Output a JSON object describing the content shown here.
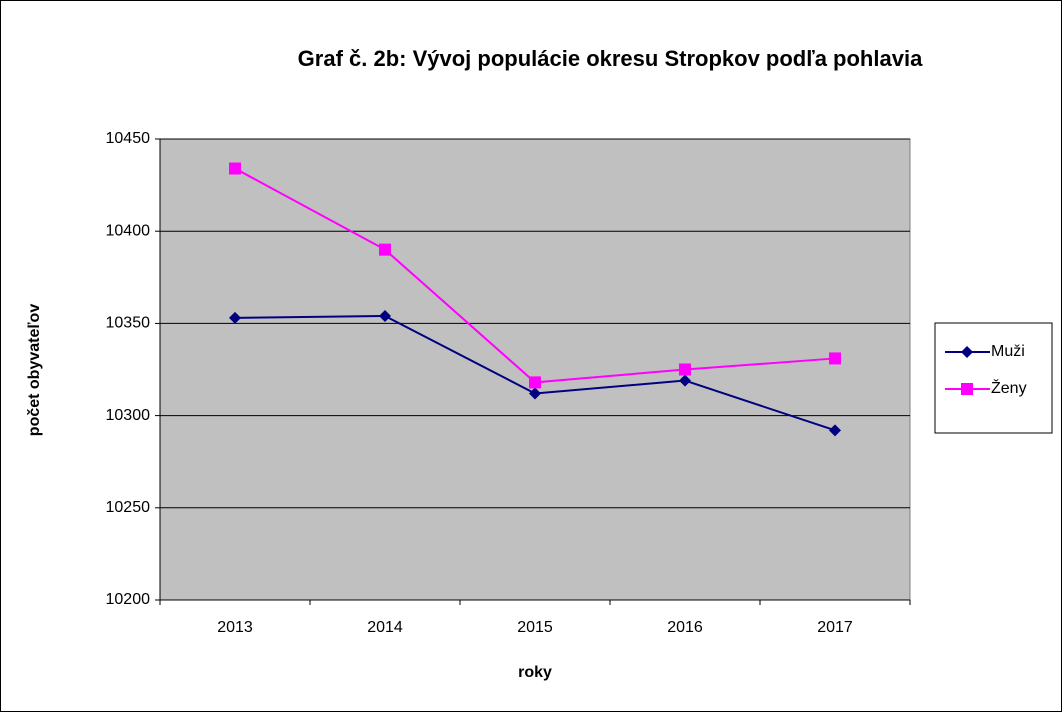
{
  "chart_data": {
    "type": "line",
    "title": "Graf č. 2b: Vývoj populácie okresu Stropkov podľa pohlavia",
    "xlabel": "roky",
    "ylabel": "počet obyvateľov",
    "categories": [
      "2013",
      "2014",
      "2015",
      "2016",
      "2017"
    ],
    "series": [
      {
        "name": "Muži",
        "color": "#000080",
        "marker": "diamond",
        "values": [
          10353,
          10354,
          10312,
          10319,
          10292
        ]
      },
      {
        "name": "Ženy",
        "color": "#ff00ff",
        "marker": "square",
        "values": [
          10434,
          10390,
          10318,
          10325,
          10331
        ]
      }
    ],
    "ylim": [
      10200,
      10450
    ],
    "yticks": [
      10200,
      10250,
      10300,
      10350,
      10400,
      10450
    ],
    "grid": true,
    "legend": "right",
    "plot_background": "#c0c0c0"
  }
}
